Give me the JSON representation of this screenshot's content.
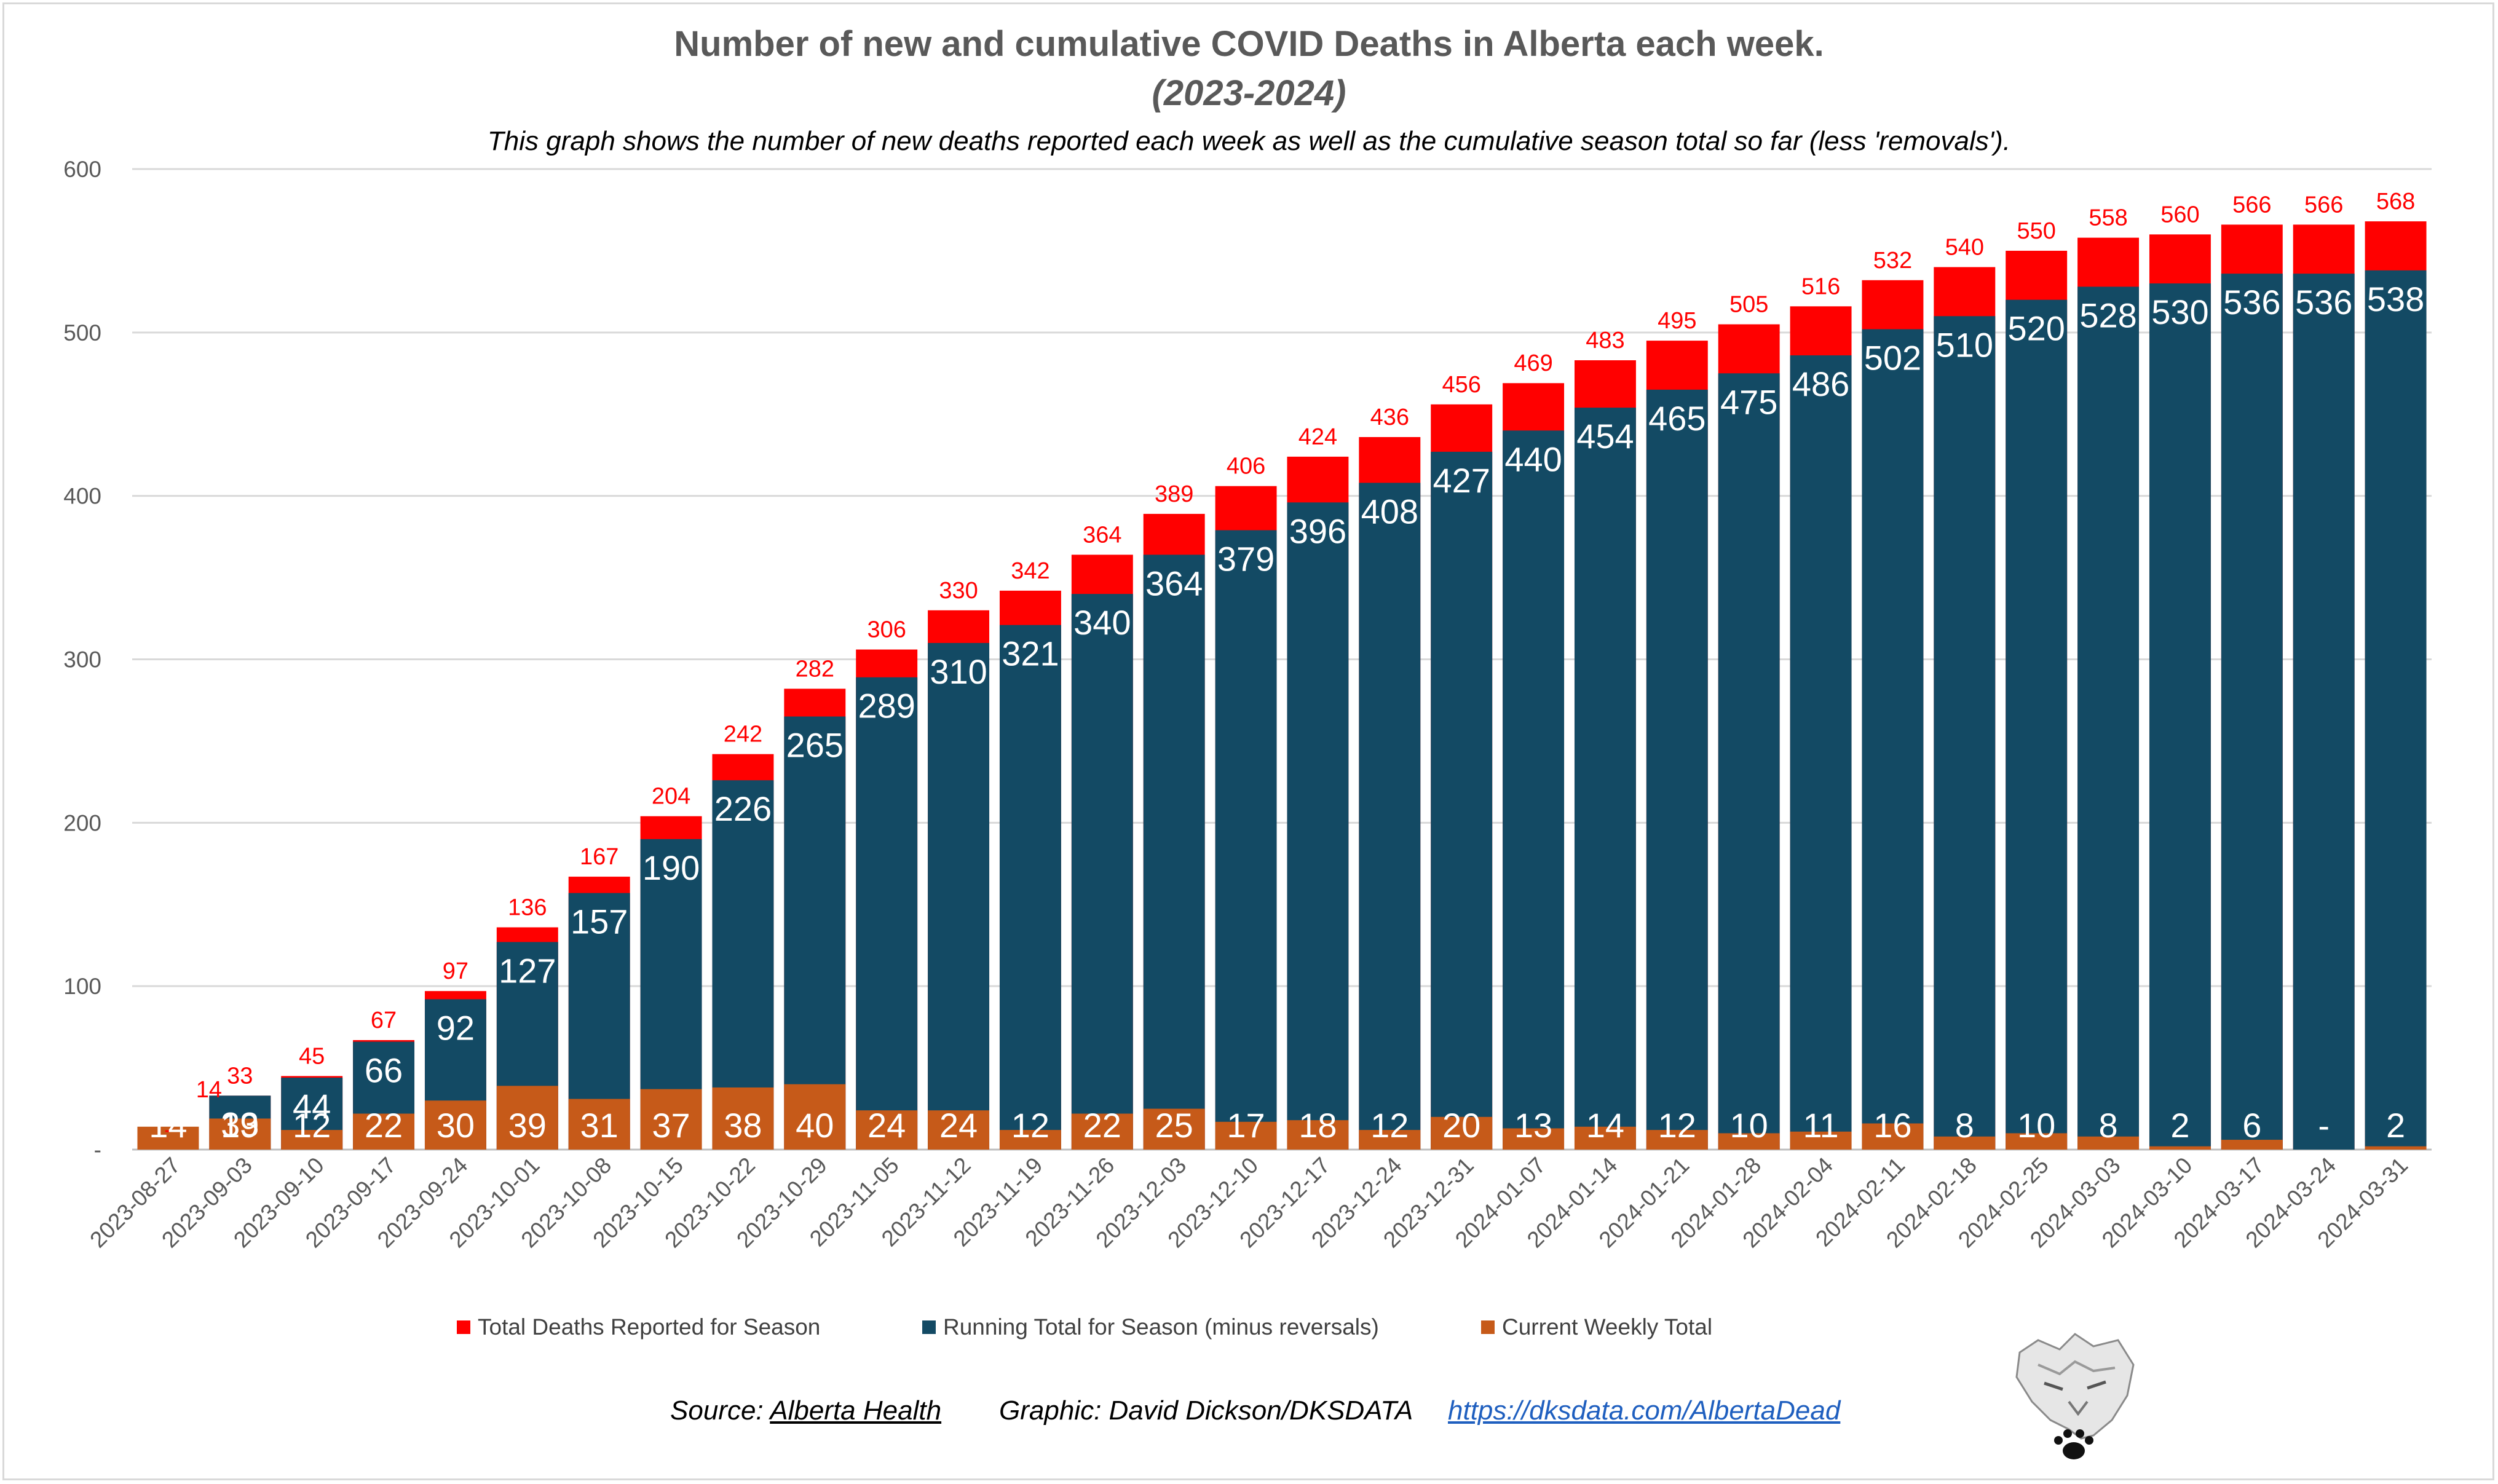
{
  "chart_data": {
    "type": "bar",
    "title": "Number of new and cumulative COVID Deaths in Alberta each week.",
    "subtitle": "(2023-2024)",
    "description": "This graph shows the number of new deaths reported each week as well as the cumulative season total so far (less 'removals').",
    "ylim": [
      0,
      600
    ],
    "yticks": [
      "-",
      "100",
      "200",
      "300",
      "400",
      "500",
      "600"
    ],
    "grid": true,
    "legend_position": "bottom",
    "categories": [
      "2023-08-27",
      "2023-09-03",
      "2023-09-10",
      "2023-09-17",
      "2023-09-24",
      "2023-10-01",
      "2023-10-08",
      "2023-10-15",
      "2023-10-22",
      "2023-10-29",
      "2023-11-05",
      "2023-11-12",
      "2023-11-19",
      "2023-11-26",
      "2023-12-03",
      "2023-12-10",
      "2023-12-17",
      "2023-12-24",
      "2023-12-31",
      "2024-01-07",
      "2024-01-14",
      "2024-01-21",
      "2024-01-28",
      "2024-02-04",
      "2024-02-11",
      "2024-02-18",
      "2024-02-25",
      "2024-03-03",
      "2024-03-10",
      "2024-03-17",
      "2024-03-24",
      "2024-03-31"
    ],
    "series": [
      {
        "name": "Total Deaths Reported for Season",
        "color": "#ff0000",
        "values": [
          0,
          33,
          45,
          67,
          97,
          136,
          167,
          204,
          242,
          282,
          306,
          330,
          342,
          364,
          389,
          406,
          424,
          436,
          456,
          469,
          483,
          495,
          505,
          516,
          532,
          540,
          550,
          558,
          560,
          566,
          566,
          568
        ],
        "labels": [
          "-",
          "33",
          "45",
          "67",
          "97",
          "136",
          "167",
          "204",
          "242",
          "282",
          "306",
          "330",
          "342",
          "364",
          "389",
          "406",
          "424",
          "436",
          "456",
          "469",
          "483",
          "495",
          "505",
          "516",
          "532",
          "540",
          "550",
          "558",
          "560",
          "566",
          "566",
          "568"
        ]
      },
      {
        "name": "Running Total for Season (minus reversals)",
        "color": "#134a64",
        "values": [
          0,
          33,
          44,
          66,
          92,
          127,
          157,
          190,
          226,
          265,
          289,
          310,
          321,
          340,
          364,
          379,
          396,
          408,
          427,
          440,
          454,
          465,
          475,
          486,
          502,
          510,
          520,
          528,
          530,
          536,
          536,
          538
        ],
        "labels": [
          "",
          "33",
          "44",
          "66",
          "92",
          "127",
          "157",
          "190",
          "226",
          "265",
          "289",
          "310",
          "321",
          "340",
          "364",
          "379",
          "396",
          "408",
          "427",
          "440",
          "454",
          "465",
          "475",
          "486",
          "502",
          "510",
          "520",
          "528",
          "530",
          "536",
          "536",
          "538"
        ]
      },
      {
        "name": "Current Weekly Total",
        "color": "#c65a19",
        "values": [
          14,
          19,
          12,
          22,
          30,
          39,
          31,
          37,
          38,
          40,
          24,
          24,
          12,
          22,
          25,
          17,
          18,
          12,
          20,
          13,
          14,
          12,
          10,
          11,
          16,
          8,
          10,
          8,
          2,
          6,
          0,
          2
        ],
        "labels": [
          "14",
          "19",
          "12",
          "22",
          "30",
          "39",
          "31",
          "37",
          "38",
          "40",
          "24",
          "24",
          "12",
          "22",
          "25",
          "17",
          "18",
          "12",
          "20",
          "13",
          "14",
          "12",
          "10",
          "11",
          "16",
          "8",
          "10",
          "8",
          "2",
          "6",
          "-",
          "2"
        ]
      }
    ],
    "extra_labels": [
      "14"
    ]
  },
  "footer": {
    "source_prefix": "Source: ",
    "source_link": "Alberta Health",
    "graphic": "Graphic: David Dickson/DKSDATA",
    "url": "https://dksdata.com/AlbertaDead"
  },
  "logo": "wolf-logo"
}
